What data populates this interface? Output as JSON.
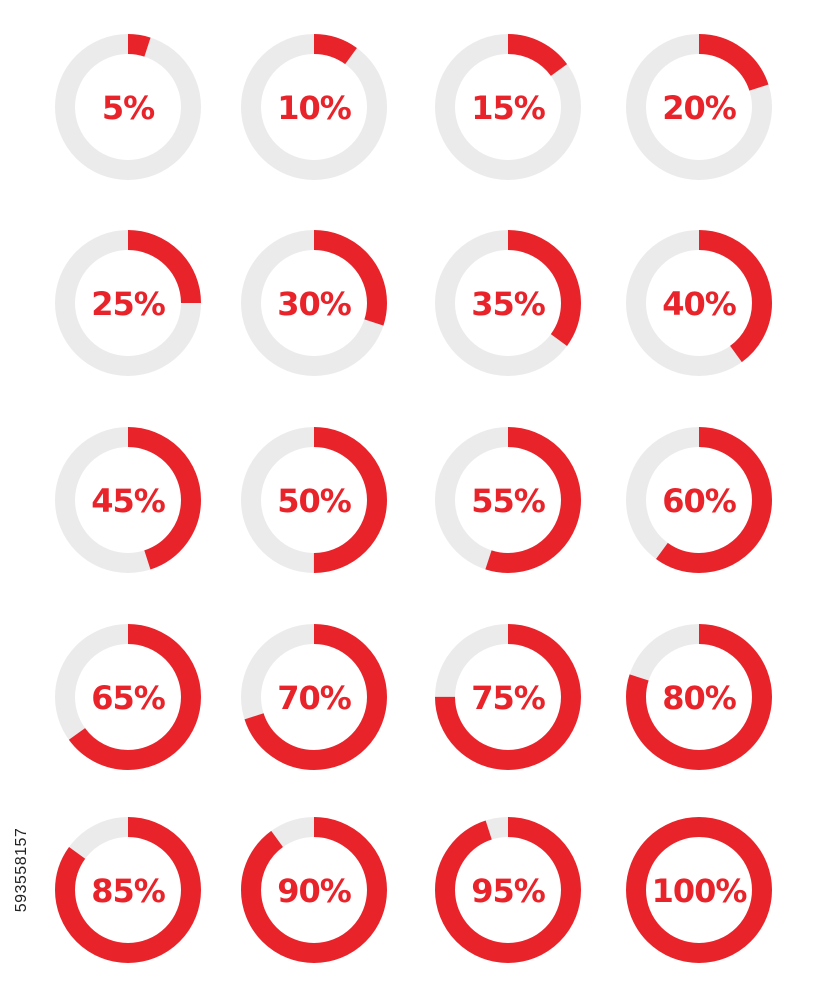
{
  "colors": {
    "accent": "#e8232a",
    "track": "#ebebeb",
    "label": "#e8232a"
  },
  "rings": [
    {
      "label": "5%",
      "value": 5
    },
    {
      "label": "10%",
      "value": 10
    },
    {
      "label": "15%",
      "value": 15
    },
    {
      "label": "20%",
      "value": 20
    },
    {
      "label": "25%",
      "value": 25
    },
    {
      "label": "30%",
      "value": 30
    },
    {
      "label": "35%",
      "value": 35
    },
    {
      "label": "40%",
      "value": 40
    },
    {
      "label": "45%",
      "value": 45
    },
    {
      "label": "50%",
      "value": 50
    },
    {
      "label": "55%",
      "value": 55
    },
    {
      "label": "60%",
      "value": 60
    },
    {
      "label": "65%",
      "value": 65
    },
    {
      "label": "70%",
      "value": 70
    },
    {
      "label": "75%",
      "value": 75
    },
    {
      "label": "80%",
      "value": 80
    },
    {
      "label": "85%",
      "value": 85
    },
    {
      "label": "90%",
      "value": 90
    },
    {
      "label": "95%",
      "value": 95
    },
    {
      "label": "100%",
      "value": 100
    }
  ],
  "stock_id": "593558157"
}
